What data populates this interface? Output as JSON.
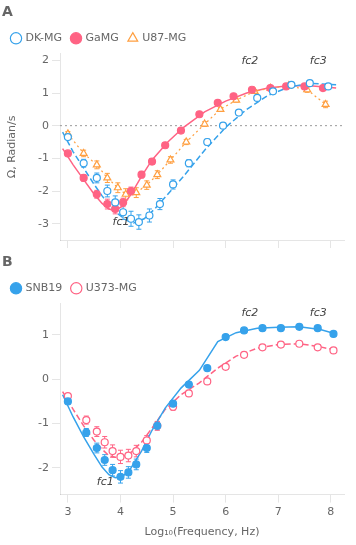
{
  "chart_data": [
    {
      "type": "line",
      "title": "A",
      "ylabel": "Ω, Radian/s",
      "xlim": [
        2.85,
        8.25
      ],
      "xticks": [
        3,
        4,
        5,
        6,
        7,
        8
      ],
      "ylim": [
        -3.5,
        2.2
      ],
      "yticks": [
        -3,
        -2,
        -1,
        0,
        1,
        2
      ],
      "grid": false,
      "legend": "upper left",
      "tick_labels": "y",
      "hline": 0,
      "series": [
        {
          "name": "DK-MG",
          "marker": "open-circle",
          "line_style": "dashed",
          "x": [
            3.0,
            3.3,
            3.55,
            3.75,
            3.9,
            4.05,
            4.2,
            4.35,
            4.55,
            4.75,
            5.0,
            5.3,
            5.65,
            5.95,
            6.25,
            6.6,
            6.9,
            7.25,
            7.6,
            7.95
          ],
          "values": [
            -0.35,
            -1.15,
            -1.6,
            -2.0,
            -2.35,
            -2.65,
            -2.85,
            -2.95,
            -2.75,
            -2.4,
            -1.8,
            -1.15,
            -0.5,
            0.0,
            0.4,
            0.85,
            1.05,
            1.25,
            1.3,
            1.2
          ],
          "errors": [
            0.07,
            0.12,
            0.15,
            0.18,
            0.2,
            0.22,
            0.23,
            0.22,
            0.2,
            0.17,
            0.14,
            0.11,
            0.09,
            0.07,
            0.07,
            0.07,
            0.07,
            0.07,
            0.07,
            0.07
          ],
          "line_x": [
            2.9,
            3.1,
            3.3,
            3.5,
            3.65,
            3.8,
            3.95,
            4.1,
            4.25,
            4.45,
            4.65,
            4.9,
            5.2,
            5.6,
            6.0,
            6.4,
            6.8,
            7.2,
            7.6,
            8.1
          ],
          "line_values": [
            -0.2,
            -0.8,
            -1.3,
            -1.8,
            -2.15,
            -2.45,
            -2.7,
            -2.88,
            -2.98,
            -2.85,
            -2.55,
            -2.1,
            -1.55,
            -0.75,
            -0.05,
            0.5,
            0.92,
            1.18,
            1.3,
            1.25
          ]
        },
        {
          "name": "GaMG",
          "marker": "circle",
          "line_style": "solid",
          "x": [
            3.0,
            3.3,
            3.55,
            3.75,
            3.9,
            4.05,
            4.2,
            4.4,
            4.6,
            4.85,
            5.15,
            5.5,
            5.85,
            6.15,
            6.5,
            6.85,
            7.15,
            7.5,
            7.85
          ],
          "values": [
            -0.85,
            -1.6,
            -2.1,
            -2.4,
            -2.55,
            -2.35,
            -2.0,
            -1.5,
            -1.1,
            -0.6,
            -0.15,
            0.35,
            0.7,
            0.9,
            1.1,
            1.15,
            1.2,
            1.2,
            1.15
          ],
          "errors": [
            0.05,
            0.1,
            0.12,
            0.15,
            0.15,
            0.13,
            0.12,
            0.1,
            0.09,
            0.08,
            0.07,
            0.06,
            0.06,
            0.06,
            0.06,
            0.06,
            0.06,
            0.06,
            0.06
          ],
          "line_x": [
            2.9,
            3.1,
            3.3,
            3.5,
            3.65,
            3.78,
            3.9,
            4.05,
            4.2,
            4.4,
            4.6,
            4.9,
            5.2,
            5.6,
            6.0,
            6.4,
            6.8,
            7.2,
            7.6,
            8.1
          ],
          "line_values": [
            -0.7,
            -1.2,
            -1.65,
            -2.1,
            -2.38,
            -2.55,
            -2.6,
            -2.45,
            -2.1,
            -1.55,
            -1.05,
            -0.5,
            -0.05,
            0.42,
            0.75,
            1.0,
            1.15,
            1.22,
            1.22,
            1.15
          ]
        },
        {
          "name": "U87-MG",
          "marker": "open-triangle",
          "line_style": "dotted",
          "x": [
            3.0,
            3.3,
            3.55,
            3.75,
            3.95,
            4.1,
            4.3,
            4.5,
            4.7,
            4.95,
            5.25,
            5.6,
            5.9,
            6.2,
            6.55,
            6.85,
            7.2,
            7.55,
            7.9
          ],
          "values": [
            -0.25,
            -0.85,
            -1.2,
            -1.6,
            -1.9,
            -2.1,
            -2.05,
            -1.82,
            -1.5,
            -1.05,
            -0.5,
            0.05,
            0.5,
            0.78,
            1.05,
            1.15,
            1.22,
            1.1,
            0.65
          ],
          "errors": [
            0.07,
            0.1,
            0.12,
            0.14,
            0.15,
            0.17,
            0.15,
            0.13,
            0.12,
            0.1,
            0.08,
            0.07,
            0.06,
            0.06,
            0.06,
            0.06,
            0.06,
            0.08,
            0.1
          ]
        }
      ],
      "annotations": [
        {
          "text": "fc1",
          "x": 3.85,
          "y": -3.05
        },
        {
          "text": "fc2",
          "x": 6.3,
          "y": 1.88
        },
        {
          "text": "fc3",
          "x": 7.6,
          "y": 1.88
        }
      ]
    },
    {
      "type": "line",
      "title": "B",
      "xlabel": "Log₁₀(Frequency, Hz)",
      "xlim": [
        2.85,
        8.25
      ],
      "xticks": [
        3,
        4,
        5,
        6,
        7,
        8
      ],
      "ylim": [
        -2.6,
        1.7
      ],
      "yticks": [
        -2,
        -1,
        0,
        1
      ],
      "grid": false,
      "legend": "upper left",
      "series": [
        {
          "name": "SNB19",
          "marker": "circle",
          "line_style": "solid",
          "x": [
            3.0,
            3.35,
            3.55,
            3.7,
            3.85,
            4.0,
            4.15,
            4.3,
            4.5,
            4.7,
            5.0,
            5.3,
            5.65,
            6.0,
            6.35,
            6.7,
            7.05,
            7.4,
            7.75,
            8.05
          ],
          "values": [
            -0.5,
            -1.2,
            -1.55,
            -1.82,
            -2.05,
            -2.2,
            -2.1,
            -1.92,
            -1.55,
            -1.05,
            -0.55,
            -0.12,
            0.25,
            0.95,
            1.1,
            1.15,
            1.15,
            1.18,
            1.15,
            1.02
          ],
          "errors": [
            0.05,
            0.09,
            0.11,
            0.12,
            0.13,
            0.14,
            0.13,
            0.12,
            0.1,
            0.09,
            0.07,
            0.06,
            0.05,
            0.05,
            0.05,
            0.05,
            0.05,
            0.05,
            0.05,
            0.05
          ],
          "line_x": [
            2.9,
            3.1,
            3.3,
            3.5,
            3.65,
            3.78,
            3.9,
            4.05,
            4.2,
            4.4,
            4.6,
            4.85,
            5.15,
            5.5,
            5.85,
            6.2,
            6.6,
            7.0,
            7.4,
            7.8,
            8.1
          ],
          "line_values": [
            -0.35,
            -0.85,
            -1.3,
            -1.7,
            -1.98,
            -2.15,
            -2.22,
            -2.18,
            -2.0,
            -1.62,
            -1.15,
            -0.65,
            -0.2,
            0.2,
            0.85,
            1.05,
            1.15,
            1.17,
            1.18,
            1.12,
            1.02
          ]
        },
        {
          "name": "U373-MG",
          "marker": "open-circle",
          "line_style": "dashed",
          "x": [
            3.0,
            3.35,
            3.55,
            3.7,
            3.85,
            4.0,
            4.15,
            4.3,
            4.5,
            4.7,
            5.0,
            5.3,
            5.65,
            6.0,
            6.35,
            6.7,
            7.05,
            7.4,
            7.75,
            8.05
          ],
          "values": [
            -0.38,
            -0.92,
            -1.18,
            -1.42,
            -1.62,
            -1.75,
            -1.72,
            -1.62,
            -1.38,
            -1.05,
            -0.62,
            -0.32,
            -0.05,
            0.28,
            0.55,
            0.72,
            0.78,
            0.8,
            0.72,
            0.65
          ],
          "errors": [
            0.05,
            0.09,
            0.11,
            0.13,
            0.14,
            0.15,
            0.14,
            0.13,
            0.11,
            0.1,
            0.08,
            0.07,
            0.06,
            0.05,
            0.05,
            0.05,
            0.05,
            0.05,
            0.05,
            0.05
          ],
          "line_x": [
            2.9,
            3.1,
            3.3,
            3.5,
            3.65,
            3.78,
            3.9,
            4.05,
            4.2,
            4.4,
            4.6,
            4.85,
            5.15,
            5.5,
            5.85,
            6.2,
            6.6,
            7.0,
            7.4,
            7.8,
            8.1
          ],
          "line_values": [
            -0.28,
            -0.68,
            -1.05,
            -1.38,
            -1.58,
            -1.72,
            -1.76,
            -1.74,
            -1.65,
            -1.42,
            -1.1,
            -0.68,
            -0.35,
            -0.08,
            0.25,
            0.52,
            0.7,
            0.78,
            0.8,
            0.73,
            0.65
          ]
        }
      ],
      "annotations": [
        {
          "text": "fc1",
          "x": 3.55,
          "y": -2.38
        },
        {
          "text": "fc2",
          "x": 6.3,
          "y": 1.42
        },
        {
          "text": "fc3",
          "x": 7.6,
          "y": 1.42
        }
      ]
    }
  ]
}
